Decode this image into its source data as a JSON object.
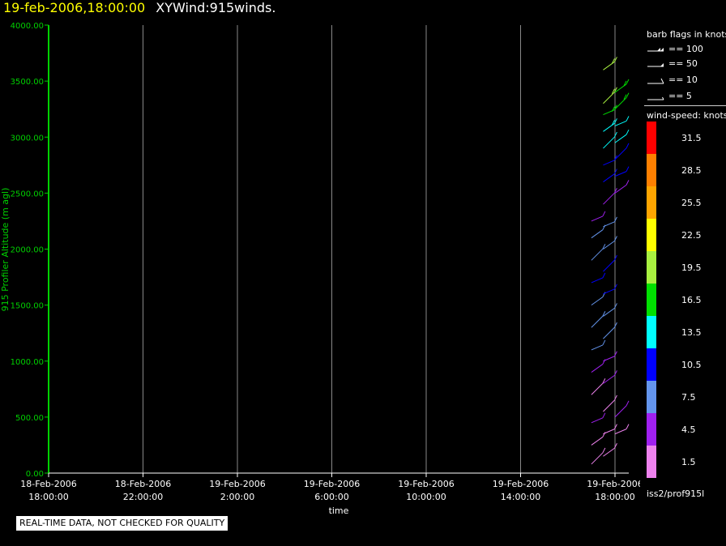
{
  "header": {
    "datetime": "19-feb-2006,18:00:00",
    "title": "XYWind:915winds."
  },
  "chart_data": {
    "type": "scatter",
    "ylabel": "915 Profiler Altitude (m agl)",
    "xlabel": "time",
    "ylim": [
      0,
      4000
    ],
    "y_ticks": [
      "0.00",
      "500.00",
      "1000.00",
      "1500.00",
      "2000.00",
      "2500.00",
      "3000.00",
      "3500.00",
      "4000.00"
    ],
    "x_ticks": [
      {
        "date": "18-Feb-2006",
        "time": "18:00:00"
      },
      {
        "date": "18-Feb-2006",
        "time": "22:00:00"
      },
      {
        "date": "19-Feb-2006",
        "time": "2:00:00"
      },
      {
        "date": "19-Feb-2006",
        "time": "6:00:00"
      },
      {
        "date": "19-Feb-2006",
        "time": "10:00:00"
      },
      {
        "date": "19-Feb-2006",
        "time": "14:00:00"
      },
      {
        "date": "19-Feb-2006",
        "time": "18:00:00"
      }
    ],
    "xlim_hours": [
      0,
      24
    ],
    "grid": "vertical",
    "series": [
      {
        "time_label": "19-Feb-2006 17:00:00",
        "x_hours": 23.0,
        "barbs": [
          {
            "alt": 80,
            "speed": 3
          },
          {
            "alt": 250,
            "speed": 3
          },
          {
            "alt": 450,
            "speed": 4
          },
          {
            "alt": 700,
            "speed": 3
          },
          {
            "alt": 900,
            "speed": 5
          },
          {
            "alt": 1100,
            "speed": 7
          },
          {
            "alt": 1300,
            "speed": 8
          },
          {
            "alt": 1500,
            "speed": 9
          },
          {
            "alt": 1700,
            "speed": 12
          },
          {
            "alt": 1900,
            "speed": 9
          },
          {
            "alt": 2100,
            "speed": 8
          },
          {
            "alt": 2250,
            "speed": 6
          }
        ]
      },
      {
        "time_label": "19-Feb-2006 17:30:00",
        "x_hours": 23.5,
        "barbs": [
          {
            "alt": 150,
            "speed": 2
          },
          {
            "alt": 350,
            "speed": 3
          },
          {
            "alt": 550,
            "speed": 3
          },
          {
            "alt": 800,
            "speed": 4
          },
          {
            "alt": 1000,
            "speed": 6
          },
          {
            "alt": 1200,
            "speed": 8
          },
          {
            "alt": 1400,
            "speed": 9
          },
          {
            "alt": 1600,
            "speed": 10
          },
          {
            "alt": 1800,
            "speed": 11
          },
          {
            "alt": 2000,
            "speed": 9
          },
          {
            "alt": 2200,
            "speed": 7
          },
          {
            "alt": 2400,
            "speed": 5
          },
          {
            "alt": 2600,
            "speed": 10
          },
          {
            "alt": 2750,
            "speed": 11
          },
          {
            "alt": 2900,
            "speed": 13
          },
          {
            "alt": 3050,
            "speed": 15
          },
          {
            "alt": 3200,
            "speed": 17
          },
          {
            "alt": 3300,
            "speed": 19
          },
          {
            "alt": 3600,
            "speed": 20
          }
        ]
      },
      {
        "time_label": "19-Feb-2006 18:00:00",
        "x_hours": 24.0,
        "barbs": [
          {
            "alt": 350,
            "speed": 3
          },
          {
            "alt": 500,
            "speed": 4
          },
          {
            "alt": 2500,
            "speed": 6
          },
          {
            "alt": 2650,
            "speed": 11
          },
          {
            "alt": 2800,
            "speed": 10
          },
          {
            "alt": 2950,
            "speed": 13
          },
          {
            "alt": 3100,
            "speed": 14
          },
          {
            "alt": 3250,
            "speed": 16
          },
          {
            "alt": 3400,
            "speed": 18
          }
        ]
      }
    ]
  },
  "legend": {
    "barb_title": "barb flags in knots",
    "barbs": [
      {
        "label": "== 100",
        "kind": "flag100"
      },
      {
        "label": "== 50",
        "kind": "flag50"
      },
      {
        "label": "== 10",
        "kind": "barb10"
      },
      {
        "label": "== 5",
        "kind": "barb5"
      }
    ],
    "speed_title": "wind-speed: knots",
    "speed_scale": [
      {
        "label": "31.5",
        "color": "#ff0000"
      },
      {
        "label": "28.5",
        "color": "#ff8000"
      },
      {
        "label": "25.5",
        "color": "#ffa500"
      },
      {
        "label": "22.5",
        "color": "#ffff00"
      },
      {
        "label": "19.5",
        "color": "#a8f040"
      },
      {
        "label": "16.5",
        "color": "#00e000"
      },
      {
        "label": "13.5",
        "color": "#00ffff"
      },
      {
        "label": "10.5",
        "color": "#0000ff"
      },
      {
        "label": "7.5",
        "color": "#6495ed"
      },
      {
        "label": "4.5",
        "color": "#a020f0"
      },
      {
        "label": "1.5",
        "color": "#ee82ee"
      }
    ]
  },
  "source_label": "iss2/prof915l",
  "quality_note": "REAL-TIME DATA, NOT CHECKED FOR QUALITY",
  "colors": {
    "axis": "#00d000",
    "grid": "#888888",
    "header_date": "#ffff00"
  }
}
